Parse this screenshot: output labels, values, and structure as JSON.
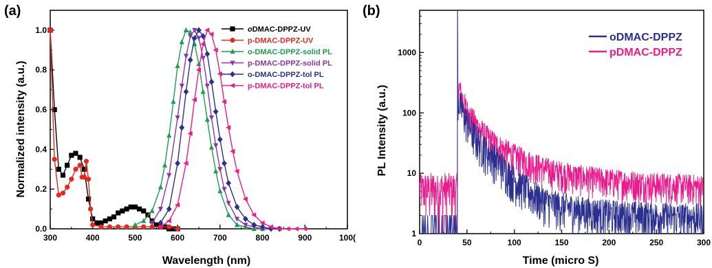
{
  "chart_data": [
    {
      "panel_label": "(a)",
      "type": "line",
      "xlabel": "Wavelength (nm)",
      "ylabel": "Normalized intensity (a.u.)",
      "xlim": [
        300,
        1000
      ],
      "ylim": [
        0,
        1.1
      ],
      "xticks": [
        "300",
        "400",
        "500",
        "600",
        "700",
        "800",
        "900",
        "100("
      ],
      "yticks": [
        "0.0",
        "0.2",
        "0.4",
        "0.6",
        "0.8",
        "1.0"
      ],
      "legend_position": "top-right",
      "series": [
        {
          "name": "oDMAC-DPPZ-UV",
          "name_prefix": "o",
          "name_rest": "DMAC-DPPZ-UV",
          "color": "#000000",
          "marker": "square",
          "x": [
            300,
            310,
            320,
            330,
            340,
            350,
            360,
            370,
            380,
            390,
            400,
            410,
            420,
            430,
            440,
            450,
            460,
            470,
            480,
            490,
            500,
            510,
            520,
            530,
            540,
            550,
            560,
            570,
            580,
            590,
            600
          ],
          "y": [
            1.0,
            0.6,
            0.3,
            0.27,
            0.32,
            0.37,
            0.38,
            0.36,
            0.3,
            0.15,
            0.05,
            0.03,
            0.03,
            0.04,
            0.05,
            0.06,
            0.08,
            0.09,
            0.1,
            0.11,
            0.11,
            0.1,
            0.09,
            0.07,
            0.04,
            0.02,
            0.01,
            0.01,
            0.0,
            0.0,
            0.0
          ]
        },
        {
          "name": "p-DMAC-DPPZ-UV",
          "color": "#e8281e",
          "marker": "circle",
          "x": [
            300,
            310,
            320,
            330,
            340,
            350,
            360,
            370,
            375,
            380,
            385,
            390,
            395,
            400,
            420,
            440,
            460,
            480,
            500,
            520,
            540,
            560,
            580,
            600
          ],
          "y": [
            1.0,
            0.35,
            0.17,
            0.18,
            0.21,
            0.25,
            0.3,
            0.32,
            0.26,
            0.26,
            0.34,
            0.25,
            0.1,
            0.02,
            0.01,
            0.01,
            0.01,
            0.01,
            0.01,
            0.01,
            0.01,
            0.01,
            0.01,
            0.0
          ]
        },
        {
          "name": "o-DMAC-DPPZ-solid PL",
          "color": "#1a9e50",
          "marker": "triangle-up",
          "x": [
            500,
            520,
            540,
            560,
            570,
            580,
            590,
            600,
            610,
            620,
            630,
            640,
            650,
            660,
            670,
            680,
            690,
            700,
            720,
            740,
            760,
            780,
            800
          ],
          "y": [
            0.02,
            0.04,
            0.09,
            0.21,
            0.32,
            0.47,
            0.64,
            0.82,
            0.94,
            1.0,
            0.99,
            0.93,
            0.83,
            0.69,
            0.55,
            0.41,
            0.29,
            0.19,
            0.07,
            0.02,
            0.01,
            0.0,
            0.0
          ]
        },
        {
          "name": "p-DMAC-DPPZ-solid PL",
          "color": "#8e35a8",
          "marker": "triangle-down",
          "x": [
            540,
            560,
            580,
            600,
            610,
            620,
            630,
            640,
            650,
            660,
            670,
            680,
            690,
            700,
            710,
            720,
            740,
            760,
            780,
            800,
            820,
            840
          ],
          "y": [
            0.03,
            0.1,
            0.27,
            0.56,
            0.72,
            0.87,
            0.97,
            1.0,
            0.96,
            0.86,
            0.72,
            0.56,
            0.42,
            0.3,
            0.2,
            0.13,
            0.05,
            0.02,
            0.01,
            0.0,
            0.0,
            0.0
          ]
        },
        {
          "name": "o-DMAC-DPPZ-tol PL",
          "color": "#2b2f8f",
          "marker": "diamond",
          "x": [
            560,
            580,
            600,
            610,
            620,
            630,
            640,
            650,
            660,
            670,
            680,
            690,
            700,
            710,
            720,
            740,
            760,
            780,
            800,
            820,
            840
          ],
          "y": [
            0.03,
            0.1,
            0.33,
            0.51,
            0.69,
            0.85,
            0.96,
            1.0,
            0.97,
            0.88,
            0.74,
            0.59,
            0.45,
            0.33,
            0.23,
            0.11,
            0.05,
            0.02,
            0.01,
            0.0,
            0.0
          ]
        },
        {
          "name": "p-DMAC-DPPZ-tol PL",
          "color": "#ec1a8b",
          "marker": "triangle-left",
          "x": [
            560,
            580,
            600,
            620,
            630,
            640,
            650,
            660,
            670,
            680,
            690,
            700,
            710,
            720,
            730,
            740,
            760,
            780,
            800,
            820,
            840,
            860,
            880,
            900
          ],
          "y": [
            0.01,
            0.04,
            0.12,
            0.33,
            0.48,
            0.65,
            0.8,
            0.93,
            1.0,
            0.98,
            0.9,
            0.78,
            0.64,
            0.51,
            0.39,
            0.29,
            0.15,
            0.07,
            0.03,
            0.01,
            0.0,
            0.0,
            0.0,
            0.0
          ]
        }
      ]
    },
    {
      "panel_label": "(b)",
      "type": "line",
      "xlabel": "Time (micro S)",
      "ylabel": "PL Intensity (a.u.)",
      "scale_y": "log",
      "xlim": [
        0,
        300
      ],
      "ylim": [
        1,
        5000
      ],
      "xticks": [
        "0",
        "50",
        "100",
        "150",
        "200",
        "250",
        "300"
      ],
      "yticks": [
        "1",
        "10",
        "100",
        "1000"
      ],
      "legend_position": "top-right",
      "pulse_time": 40,
      "series": [
        {
          "name": "oDMAC-DPPZ",
          "color": "#2b2f8f",
          "peak": 5000,
          "decay_start": 180,
          "decay_points": [
            [
              40,
              180
            ],
            [
              45,
              110
            ],
            [
              50,
              75
            ],
            [
              55,
              50
            ],
            [
              60,
              38
            ],
            [
              70,
              25
            ],
            [
              80,
              18
            ],
            [
              90,
              12
            ],
            [
              100,
              8
            ],
            [
              110,
              6
            ],
            [
              120,
              4.5
            ],
            [
              140,
              3.2
            ],
            [
              170,
              2.5
            ],
            [
              200,
              2.2
            ],
            [
              250,
              2.0
            ],
            [
              300,
              1.9
            ]
          ]
        },
        {
          "name": "pDMAC-DPPZ",
          "color": "#ec1a8b",
          "peak": 5000,
          "decay_start": 300,
          "decay_points": [
            [
              40,
              300
            ],
            [
              45,
              160
            ],
            [
              50,
              100
            ],
            [
              55,
              75
            ],
            [
              60,
              58
            ],
            [
              70,
              38
            ],
            [
              80,
              28
            ],
            [
              90,
              22
            ],
            [
              100,
              18
            ],
            [
              120,
              13
            ],
            [
              140,
              10
            ],
            [
              170,
              8
            ],
            [
              200,
              7
            ],
            [
              250,
              6
            ],
            [
              300,
              5.5
            ]
          ]
        }
      ]
    }
  ]
}
